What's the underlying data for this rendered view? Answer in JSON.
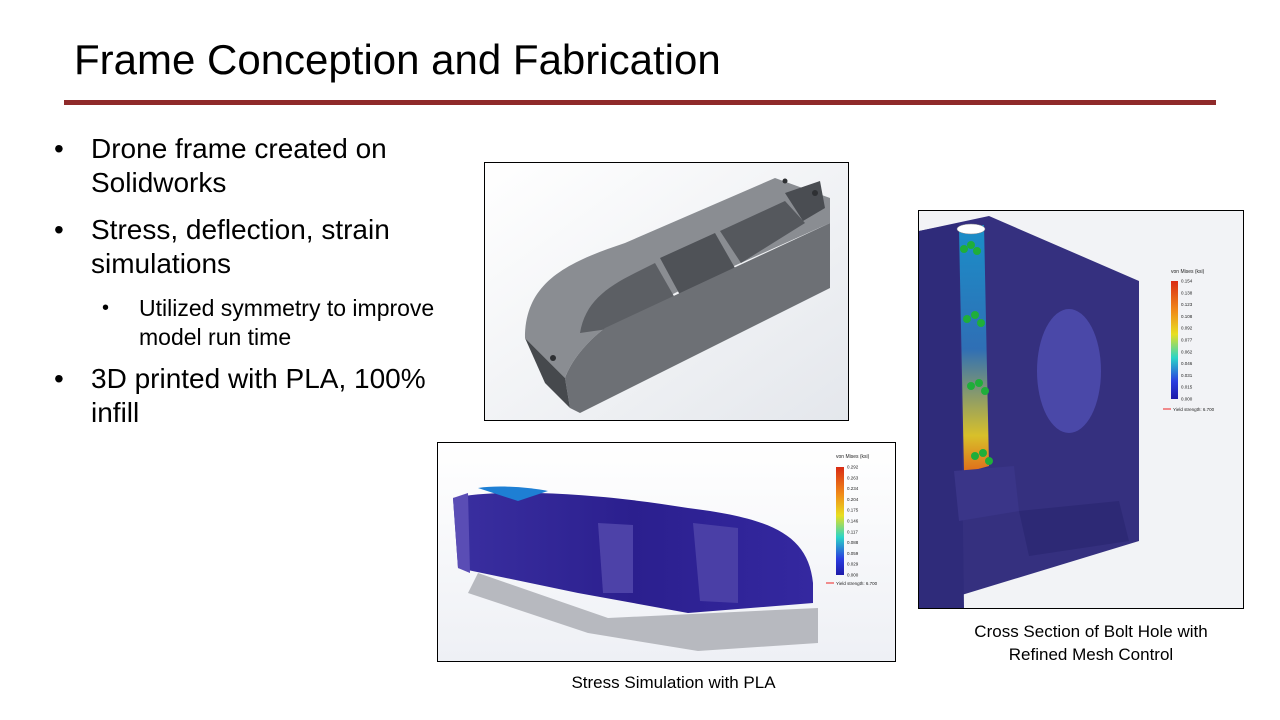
{
  "slide": {
    "title": "Frame Conception and Fabrication",
    "accent_color": "#8f2a2a"
  },
  "bullets": [
    {
      "marker": "•",
      "text": "Drone frame created on Solidworks"
    },
    {
      "marker": "•",
      "text": "Stress, deflection, strain simulations",
      "sub": [
        {
          "marker": "•",
          "text": "Utilized symmetry to improve model run time"
        }
      ]
    },
    {
      "marker": "•",
      "text": " 3D printed with PLA, 100% infill"
    }
  ],
  "figures": {
    "cad_model": {
      "caption": ""
    },
    "stress_sim": {
      "caption": "Stress Simulation with PLA",
      "legend_title": "von Mises (ksi)",
      "legend_values": [
        "0.292",
        "0.263",
        "0.234",
        "0.204",
        "0.175",
        "0.146",
        "0.117",
        "0.088",
        "0.059",
        "0.029",
        "0.000"
      ],
      "yield_label": "Yield strength: 6.700"
    },
    "bolt_hole": {
      "caption_line1": "Cross Section of Bolt Hole with",
      "caption_line2": "Refined Mesh Control",
      "legend_title": "von Mises (ksi)",
      "legend_values": [
        "0.154",
        "0.138",
        "0.123",
        "0.108",
        "0.092",
        "0.077",
        "0.062",
        "0.046",
        "0.031",
        "0.015",
        "0.000"
      ],
      "yield_label": "Yield strength: 6.700"
    }
  }
}
